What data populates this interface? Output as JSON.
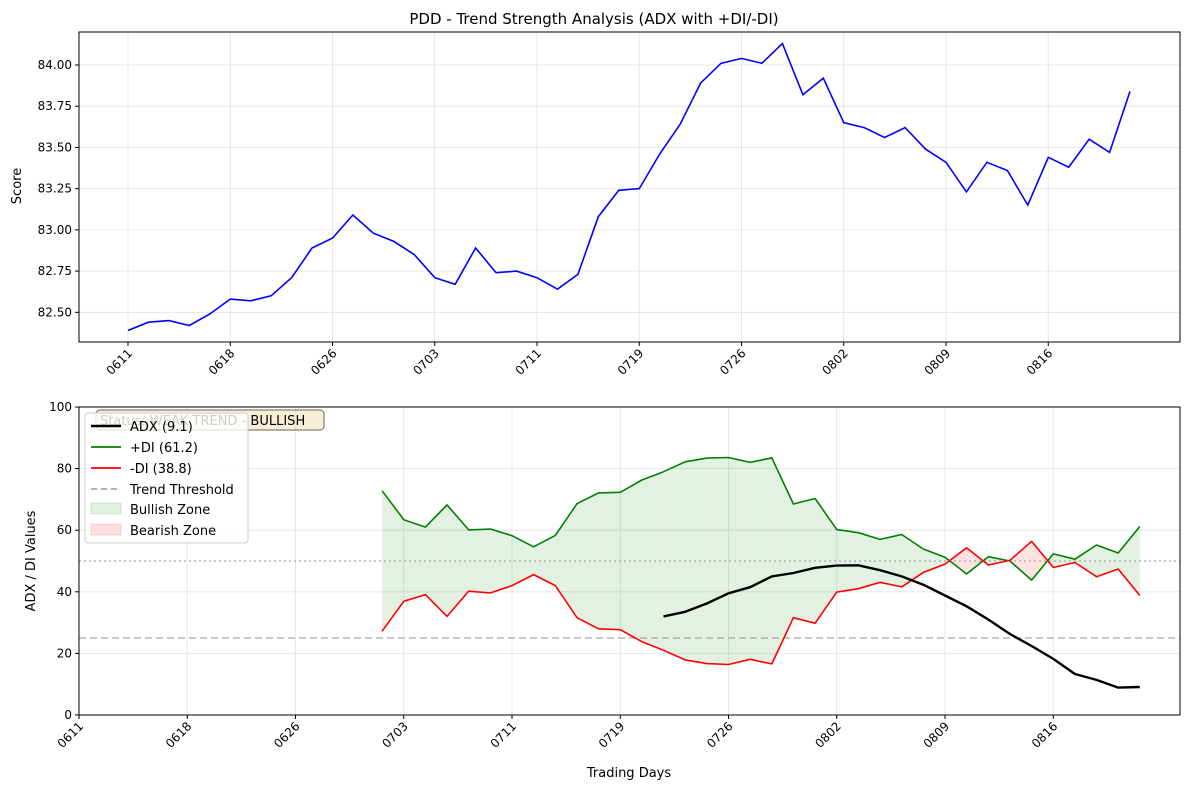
{
  "colors": {
    "price_line": "#0000ff",
    "adx_line": "#000000",
    "plus_di_line": "#008000",
    "minus_di_line": "#ff0000",
    "threshold_line": "#999999",
    "bullish_fill": "#008000",
    "bearish_fill": "#ff0000",
    "status_box_fill": "#f5deb3",
    "grid": "#b0b0b0"
  },
  "chart_data": [
    {
      "type": "line",
      "title": "PDD - Trend Strength Analysis (ADX with +DI/-DI)",
      "xlabel": "",
      "ylabel": "Score",
      "tick_labels_x": [
        "0611",
        "0618",
        "0626",
        "0703",
        "0711",
        "0719",
        "0726",
        "0802",
        "0809",
        "0816"
      ],
      "tick_indices_x": [
        0,
        5,
        10,
        15,
        20,
        25,
        30,
        35,
        40,
        45
      ],
      "yticks": [
        "82.50",
        "82.75",
        "83.00",
        "83.25",
        "83.50",
        "83.75",
        "84.00"
      ],
      "ylim": [
        82.32,
        84.2
      ],
      "grid": true,
      "series": [
        {
          "values": [
            82.39,
            82.44,
            82.45,
            82.42,
            82.49,
            82.58,
            82.57,
            82.6,
            82.71,
            82.89,
            82.95,
            83.09,
            82.98,
            82.93,
            82.85,
            82.71,
            82.67,
            82.89,
            82.74,
            82.75,
            82.71,
            82.64,
            82.73,
            83.08,
            83.24,
            83.25,
            83.46,
            83.64,
            83.89,
            84.01,
            84.04,
            84.01,
            84.13,
            83.82,
            83.92,
            83.65,
            83.62,
            83.56,
            83.62,
            83.49,
            83.41,
            83.23,
            83.41,
            83.36,
            83.15,
            83.44,
            83.38,
            83.55,
            83.47,
            83.84
          ]
        }
      ]
    },
    {
      "type": "line",
      "title": "",
      "xlabel": "Trading Days",
      "ylabel": "ADX / DI Values",
      "tick_labels_x": [
        "0611",
        "0618",
        "0626",
        "0703",
        "0711",
        "0719",
        "0726",
        "0802",
        "0809",
        "0816"
      ],
      "tick_indices_x": [
        0,
        5,
        10,
        15,
        20,
        25,
        30,
        35,
        40,
        45
      ],
      "yticks": [
        "0",
        "20",
        "40",
        "60",
        "80",
        "100"
      ],
      "ylim": [
        0,
        100
      ],
      "grid": true,
      "legend_position": "upper-left",
      "status_text": "Status: WEAK TREND - BULLISH",
      "threshold": {
        "name": "Trend Threshold",
        "value": 25
      },
      "midline": 50,
      "zones": {
        "bullish_label": "Bullish Zone",
        "bearish_label": "Bearish Zone"
      },
      "series": [
        {
          "name": "ADX (9.1)",
          "start_index": 27,
          "values": [
            32.0,
            33.5,
            36.2,
            39.5,
            41.5,
            45.0,
            46.1,
            47.8,
            48.5,
            48.6,
            47.0,
            45.0,
            42.3,
            38.8,
            35.3,
            31.0,
            26.3,
            22.4,
            18.2,
            13.3,
            11.4,
            8.9,
            9.1
          ]
        },
        {
          "name": "+DI (61.2)",
          "start_index": 14,
          "values": [
            72.8,
            63.4,
            61.0,
            68.2,
            60.1,
            60.4,
            58.2,
            54.6,
            58.3,
            68.6,
            72.1,
            72.3,
            76.3,
            79.0,
            82.2,
            83.4,
            83.6,
            82.0,
            83.5,
            68.5,
            70.3,
            60.2,
            59.2,
            57.0,
            58.6,
            53.9,
            51.2,
            45.8,
            51.4,
            50.0,
            43.8,
            52.3,
            50.6,
            55.2,
            52.6,
            61.2
          ]
        },
        {
          "name": "-DI (38.8)",
          "start_index": 14,
          "values": [
            27.2,
            36.9,
            39.1,
            32.0,
            40.2,
            39.6,
            42.0,
            45.6,
            42.0,
            31.6,
            28.0,
            27.7,
            23.8,
            21.0,
            17.9,
            16.7,
            16.4,
            18.1,
            16.6,
            31.6,
            29.8,
            39.9,
            41.0,
            43.1,
            41.6,
            46.3,
            49.0,
            54.3,
            48.7,
            50.2,
            56.4,
            47.9,
            49.5,
            44.9,
            47.4,
            38.8
          ]
        }
      ]
    }
  ]
}
